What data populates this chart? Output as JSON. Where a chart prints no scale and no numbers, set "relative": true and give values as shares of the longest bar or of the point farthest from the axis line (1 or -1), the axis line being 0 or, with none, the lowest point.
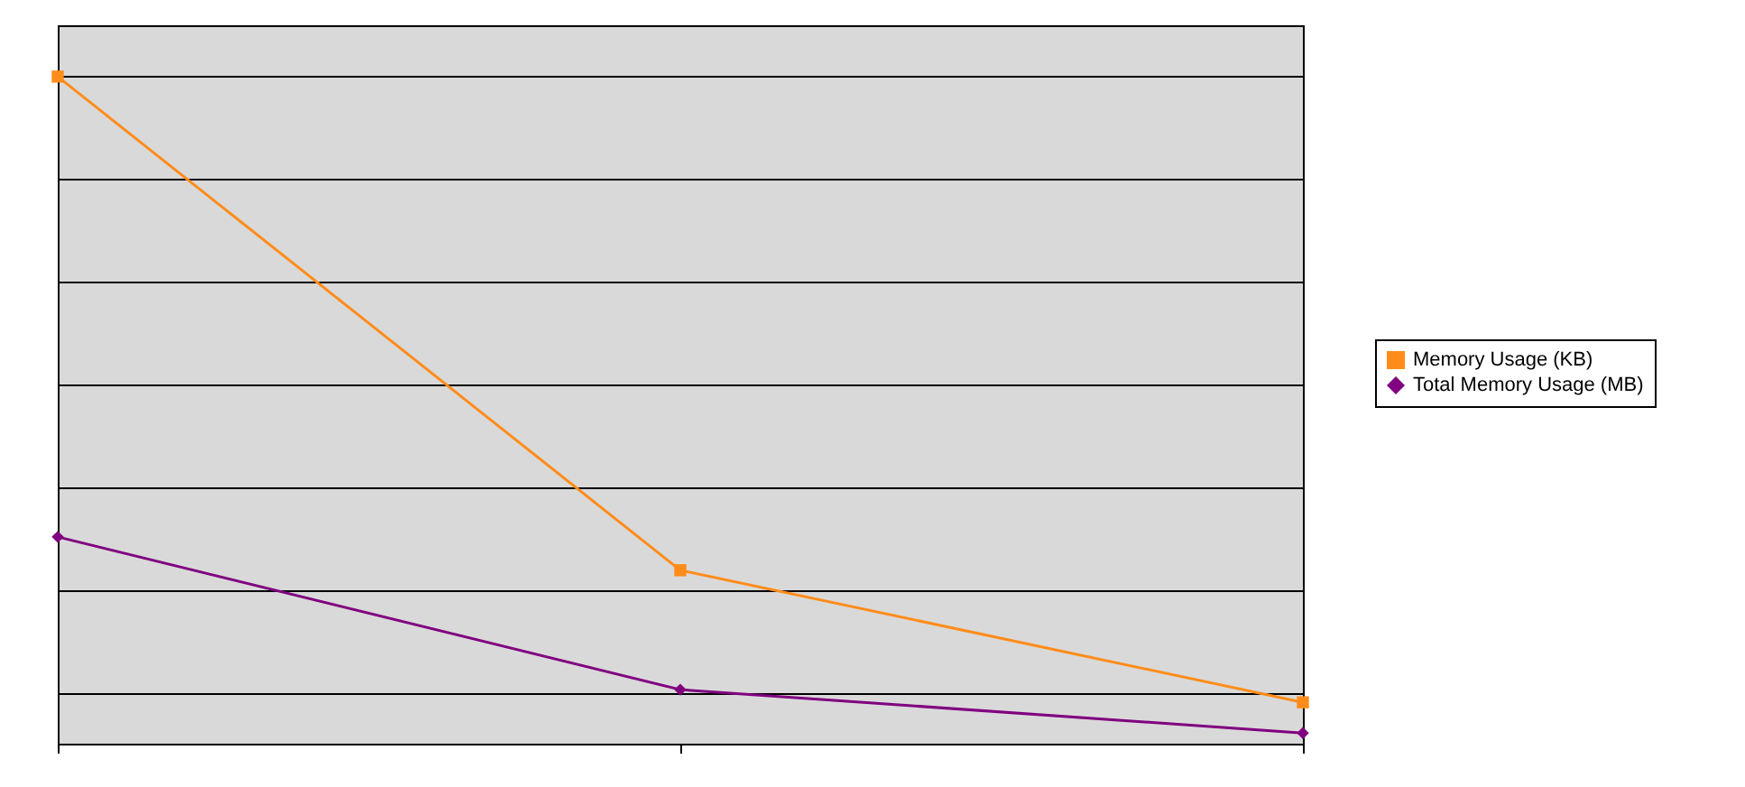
{
  "chart_data": {
    "type": "line",
    "relative": true,
    "categories": [
      null,
      null,
      null
    ],
    "grid": "y",
    "legend": "right",
    "series": [
      {
        "name": "Memory Usage (KB)",
        "color": "#ff8c1a",
        "marker": "square",
        "values": [
          1,
          0.26,
          0.062
        ]
      },
      {
        "name": "Total Memory Usage (MB)",
        "color": "#800080",
        "marker": "diamond",
        "values": [
          0.31,
          0.081,
          0.016
        ]
      }
    ]
  }
}
